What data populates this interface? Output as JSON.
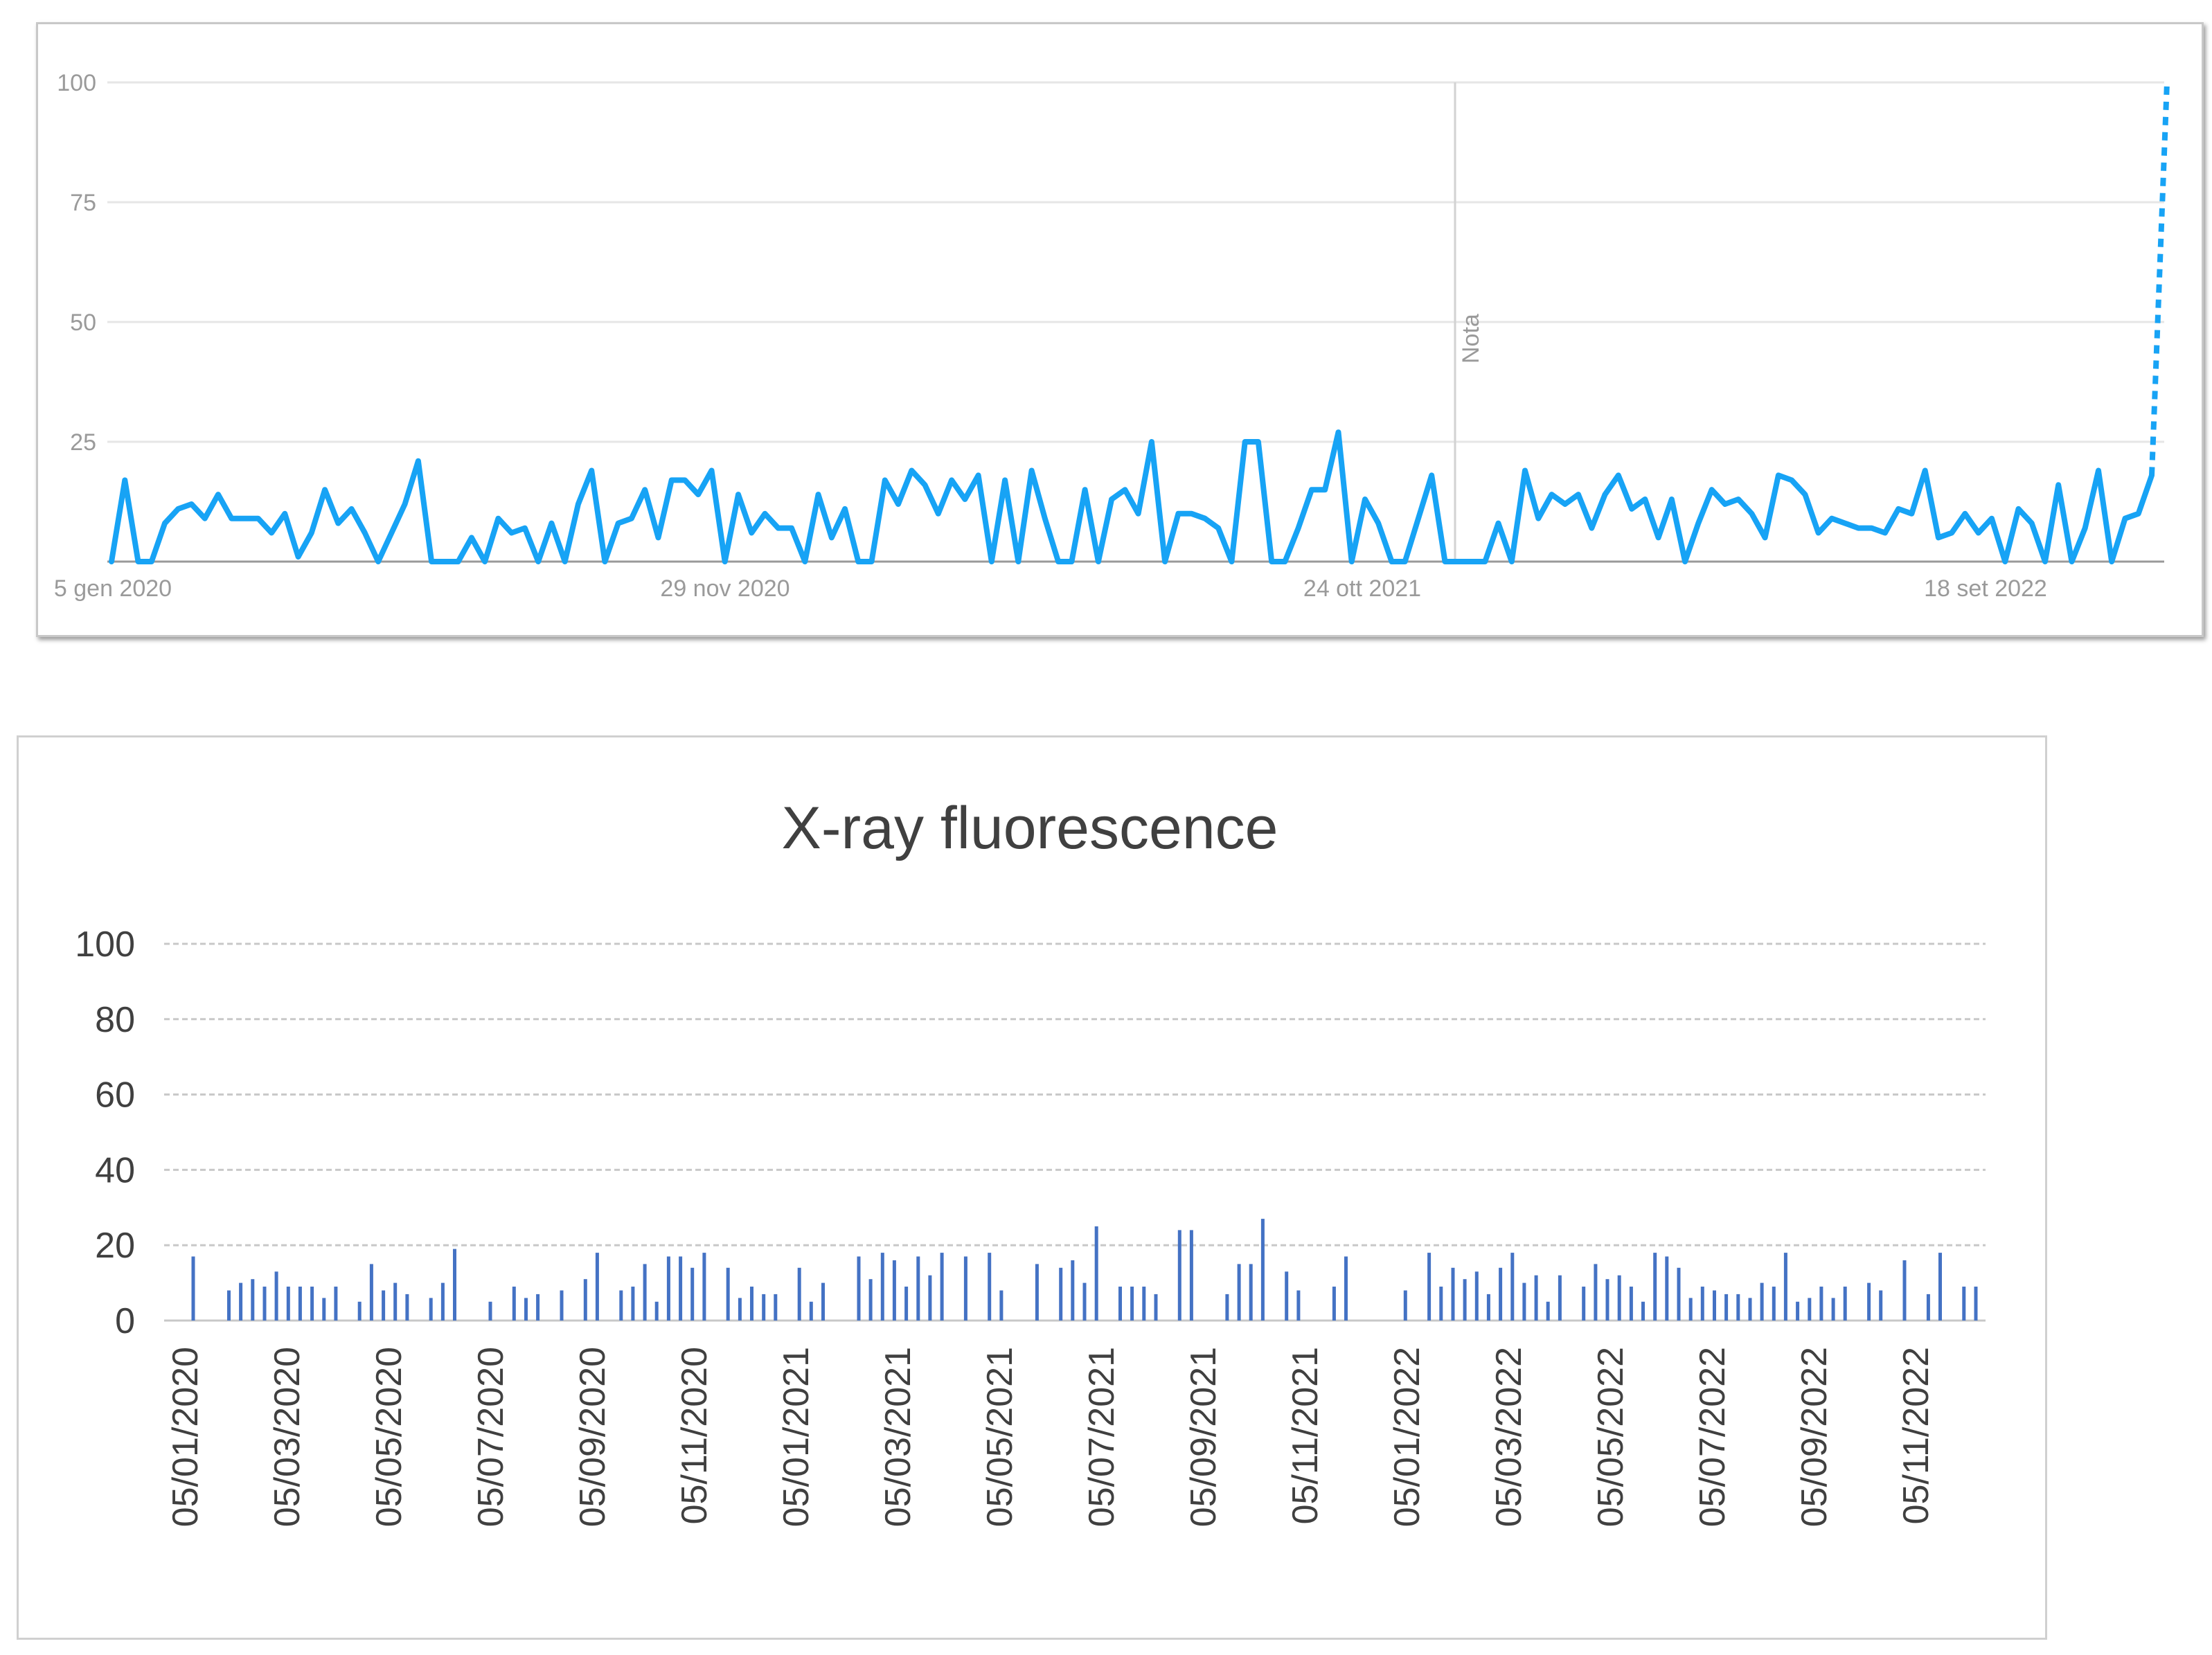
{
  "colors": {
    "line": "#17a3f5",
    "bar": "#4472c4",
    "grid_top": "#e6e6e6",
    "grid_bottom": "#c8c8c8",
    "axis": "#999999"
  },
  "chart_data": [
    {
      "type": "line",
      "title": "",
      "xlabel": "",
      "ylabel": "",
      "ylim": [
        0,
        100
      ],
      "yticks": [
        "100",
        "75",
        "50",
        "25"
      ],
      "xtick_labels": [
        "5 gen 2020",
        "29 nov 2020",
        "24 ott 2021",
        "18 set 2022"
      ],
      "annotation": "Nota",
      "grid": true,
      "series": [
        {
          "values": [
            0,
            17,
            0,
            0,
            8,
            11,
            12,
            9,
            14,
            9,
            9,
            9,
            6,
            10,
            1,
            6,
            15,
            8,
            11,
            6,
            0,
            6,
            12,
            21,
            0,
            0,
            0,
            5,
            0,
            9,
            6,
            7,
            0,
            8,
            0,
            12,
            19,
            0,
            8,
            9,
            15,
            5,
            17,
            17,
            14,
            19,
            0,
            14,
            6,
            10,
            7,
            7,
            0,
            14,
            5,
            11,
            0,
            0,
            17,
            12,
            19,
            16,
            10,
            17,
            13,
            18,
            0,
            17,
            0,
            19,
            9,
            0,
            0,
            15,
            0,
            13,
            15,
            10,
            25,
            0,
            10,
            10,
            9,
            7,
            0,
            25,
            25,
            0,
            0,
            7,
            15,
            15,
            27,
            0,
            13,
            8,
            0,
            0,
            9,
            18,
            0,
            0,
            0,
            0,
            8,
            0,
            19,
            9,
            14,
            12,
            14,
            7,
            14,
            18,
            11,
            13,
            5,
            13,
            0,
            8,
            15,
            12,
            13,
            10,
            5,
            18,
            17,
            14,
            6,
            9,
            8,
            7,
            7,
            6,
            11,
            10,
            19,
            5,
            6,
            10,
            6,
            9,
            0,
            11,
            8,
            0,
            16,
            0,
            7,
            19,
            0,
            9,
            10,
            18
          ],
          "final_segment_dotted_to": 100
        }
      ]
    },
    {
      "type": "bar",
      "title": "X-ray fluorescence",
      "xlabel": "",
      "ylabel": "",
      "ylim": [
        0,
        100
      ],
      "yticks": [
        "0",
        "20",
        "40",
        "60",
        "80",
        "100"
      ],
      "xtick_labels": [
        "05/01/2020",
        "05/03/2020",
        "05/05/2020",
        "05/07/2020",
        "05/09/2020",
        "05/11/2020",
        "05/01/2021",
        "05/03/2021",
        "05/05/2021",
        "05/07/2021",
        "05/09/2021",
        "05/11/2021",
        "05/01/2022",
        "05/03/2022",
        "05/05/2022",
        "05/07/2022",
        "05/09/2022",
        "05/11/2022"
      ],
      "grid": true,
      "series": [
        {
          "values": [
            17,
            0,
            0,
            8,
            10,
            11,
            9,
            13,
            9,
            9,
            9,
            6,
            9,
            0,
            5,
            15,
            8,
            10,
            7,
            0,
            6,
            10,
            19,
            0,
            0,
            5,
            0,
            9,
            6,
            7,
            0,
            8,
            0,
            11,
            18,
            0,
            8,
            9,
            15,
            5,
            17,
            17,
            14,
            18,
            0,
            14,
            6,
            9,
            7,
            7,
            0,
            14,
            5,
            10,
            0,
            0,
            17,
            11,
            18,
            16,
            9,
            17,
            12,
            18,
            0,
            17,
            0,
            18,
            8,
            0,
            0,
            15,
            0,
            14,
            16,
            10,
            25,
            0,
            9,
            9,
            9,
            7,
            0,
            24,
            24,
            0,
            0,
            7,
            15,
            15,
            27,
            0,
            13,
            8,
            0,
            0,
            9,
            17,
            0,
            0,
            0,
            0,
            8,
            0,
            18,
            9,
            14,
            11,
            13,
            7,
            14,
            18,
            10,
            12,
            5,
            12,
            0,
            9,
            15,
            11,
            12,
            9,
            5,
            18,
            17,
            14,
            6,
            9,
            8,
            7,
            7,
            6,
            10,
            9,
            18,
            5,
            6,
            9,
            6,
            9,
            0,
            10,
            8,
            0,
            16,
            0,
            7,
            18,
            0,
            9,
            9
          ]
        }
      ]
    }
  ]
}
